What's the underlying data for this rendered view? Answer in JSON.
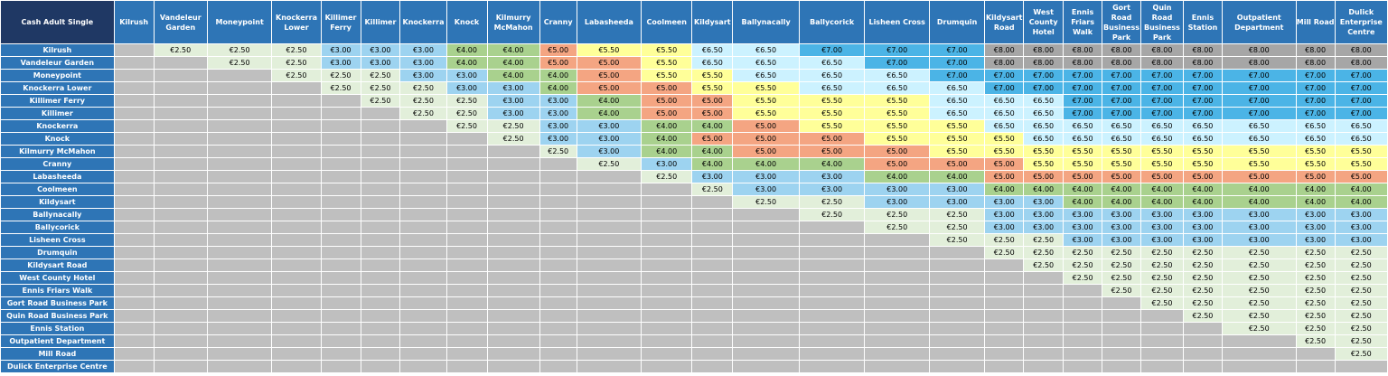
{
  "title": "Cash Adult Single",
  "stops": [
    "Kilrush",
    "Vandeleur Garden",
    "Moneypoint",
    "Knockerra Lower",
    "Killimer Ferry",
    "Killimer",
    "Knockerra",
    "Knock",
    "Kilmurry McMahon",
    "Cranny",
    "Labasheeda",
    "Coolmeen",
    "Kildysart",
    "Ballynacally",
    "Ballycorick",
    "Lisheen Cross",
    "Drumquin",
    "Kildysart Road",
    "West County Hotel",
    "Ennis Friars Walk",
    "Gort Road Business Park",
    "Quin Road Business Park",
    "Ennis Station",
    "Outpatient Department",
    "Mill Road",
    "Dulick Enterprise Centre"
  ],
  "fares": [
    [
      "€2.50",
      "€2.50",
      "€2.50",
      "€3.00",
      "€3.00",
      "€3.00",
      "€4.00",
      "€4.00",
      "€5.00",
      "€5.50",
      "€5.50",
      "€6.50",
      "€6.50",
      "€7.00",
      "€7.00",
      "€7.00",
      "€8.00",
      "€8.00",
      "€8.00",
      "€8.00",
      "€8.00",
      "€8.00",
      "€8.00",
      "€8.00",
      "€8.00"
    ],
    [
      "€2.50",
      "€2.50",
      "€3.00",
      "€3.00",
      "€3.00",
      "€4.00",
      "€4.00",
      "€5.00",
      "€5.00",
      "€5.50",
      "€6.50",
      "€6.50",
      "€6.50",
      "€7.00",
      "€7.00",
      "€8.00",
      "€8.00",
      "€8.00",
      "€8.00",
      "€8.00",
      "€8.00",
      "€8.00",
      "€8.00",
      "€8.00"
    ],
    [
      "€2.50",
      "€2.50",
      "€2.50",
      "€3.00",
      "€3.00",
      "€4.00",
      "€4.00",
      "€5.00",
      "€5.50",
      "€5.50",
      "€6.50",
      "€6.50",
      "€6.50",
      "€7.00",
      "€7.00",
      "€7.00",
      "€7.00",
      "€7.00",
      "€7.00",
      "€7.00",
      "€7.00",
      "€7.00",
      "€7.00"
    ],
    [
      "€2.50",
      "€2.50",
      "€2.50",
      "€3.00",
      "€3.00",
      "€4.00",
      "€5.00",
      "€5.00",
      "€5.50",
      "€5.50",
      "€6.50",
      "€6.50",
      "€6.50",
      "€7.00",
      "€7.00",
      "€7.00",
      "€7.00",
      "€7.00",
      "€7.00",
      "€7.00",
      "€7.00",
      "€7.00"
    ],
    [
      "€2.50",
      "€2.50",
      "€2.50",
      "€3.00",
      "€3.00",
      "€4.00",
      "€5.00",
      "€5.00",
      "€5.50",
      "€5.50",
      "€5.50",
      "€6.50",
      "€6.50",
      "€6.50",
      "€7.00",
      "€7.00",
      "€7.00",
      "€7.00",
      "€7.00",
      "€7.00",
      "€7.00"
    ],
    [
      "€2.50",
      "€2.50",
      "€3.00",
      "€3.00",
      "€4.00",
      "€5.00",
      "€5.00",
      "€5.50",
      "€5.50",
      "€5.50",
      "€6.50",
      "€6.50",
      "€6.50",
      "€7.00",
      "€7.00",
      "€7.00",
      "€7.00",
      "€7.00",
      "€7.00",
      "€7.00"
    ],
    [
      "€2.50",
      "€2.50",
      "€3.00",
      "€3.00",
      "€4.00",
      "€4.00",
      "€5.00",
      "€5.50",
      "€5.50",
      "€5.50",
      "€6.50",
      "€6.50",
      "€6.50",
      "€6.50",
      "€6.50",
      "€6.50",
      "€6.50",
      "€6.50",
      "€6.50"
    ],
    [
      "€2.50",
      "€3.00",
      "€3.00",
      "€4.00",
      "€5.00",
      "€5.00",
      "€5.00",
      "€5.50",
      "€5.50",
      "€5.50",
      "€6.50",
      "€6.50",
      "€6.50",
      "€6.50",
      "€6.50",
      "€6.50",
      "€6.50",
      "€6.50"
    ],
    [
      "€2.50",
      "€3.00",
      "€4.00",
      "€4.00",
      "€5.00",
      "€5.00",
      "€5.00",
      "€5.50",
      "€5.50",
      "€5.50",
      "€5.50",
      "€5.50",
      "€5.50",
      "€5.50",
      "€5.50",
      "€5.50",
      "€5.50"
    ],
    [
      "€2.50",
      "€3.00",
      "€4.00",
      "€4.00",
      "€4.00",
      "€5.00",
      "€5.00",
      "€5.00",
      "€5.50",
      "€5.50",
      "€5.50",
      "€5.50",
      "€5.50",
      "€5.50",
      "€5.50",
      "€5.50"
    ],
    [
      "€2.50",
      "€3.00",
      "€3.00",
      "€3.00",
      "€4.00",
      "€4.00",
      "€5.00",
      "€5.00",
      "€5.00",
      "€5.00",
      "€5.00",
      "€5.00",
      "€5.00",
      "€5.00",
      "€5.00"
    ],
    [
      "€2.50",
      "€3.00",
      "€3.00",
      "€3.00",
      "€3.00",
      "€4.00",
      "€4.00",
      "€4.00",
      "€4.00",
      "€4.00",
      "€4.00",
      "€4.00",
      "€4.00",
      "€4.00"
    ],
    [
      "€2.50",
      "€2.50",
      "€3.00",
      "€3.00",
      "€3.00",
      "€3.00",
      "€4.00",
      "€4.00",
      "€4.00",
      "€4.00",
      "€4.00",
      "€4.00",
      "€4.00"
    ],
    [
      "€2.50",
      "€2.50",
      "€2.50",
      "€3.00",
      "€3.00",
      "€3.00",
      "€3.00",
      "€3.00",
      "€3.00",
      "€3.00",
      "€3.00",
      "€3.00"
    ],
    [
      "€2.50",
      "€2.50",
      "€3.00",
      "€3.00",
      "€3.00",
      "€3.00",
      "€3.00",
      "€3.00",
      "€3.00",
      "€3.00",
      "€3.00"
    ],
    [
      "€2.50",
      "€2.50",
      "€2.50",
      "€3.00",
      "€3.00",
      "€3.00",
      "€3.00",
      "€3.00",
      "€3.00",
      "€3.00"
    ],
    [
      "€2.50",
      "€2.50",
      "€2.50",
      "€2.50",
      "€2.50",
      "€2.50",
      "€2.50",
      "€2.50",
      "€2.50"
    ],
    [
      "€2.50",
      "€2.50",
      "€2.50",
      "€2.50",
      "€2.50",
      "€2.50",
      "€2.50",
      "€2.50"
    ],
    [
      "€2.50",
      "€2.50",
      "€2.50",
      "€2.50",
      "€2.50",
      "€2.50",
      "€2.50"
    ],
    [
      "€2.50",
      "€2.50",
      "€2.50",
      "€2.50",
      "€2.50",
      "€2.50"
    ],
    [
      "€2.50",
      "€2.50",
      "€2.50",
      "€2.50",
      "€2.50"
    ],
    [
      "€2.50",
      "€2.50",
      "€2.50",
      "€2.50"
    ],
    [
      "€2.50",
      "€2.50",
      "€2.50"
    ],
    [
      "€2.50",
      "€2.50"
    ],
    [
      "€2.50"
    ],
    []
  ],
  "fare_colors": {
    "€2.50": "#e2efda",
    "€3.00": "#9dd3f0",
    "€4.00": "#a9d18e",
    "€5.00": "#f4a582",
    "€5.50": "#ffff99",
    "€6.50": "#ccf2ff",
    "€7.00": "#4bb4e6",
    "€8.00": "#a6a6a6"
  },
  "header_color": "#2e75b6",
  "corner_color": "#1f3864",
  "empty_color": "#bfbfbf"
}
